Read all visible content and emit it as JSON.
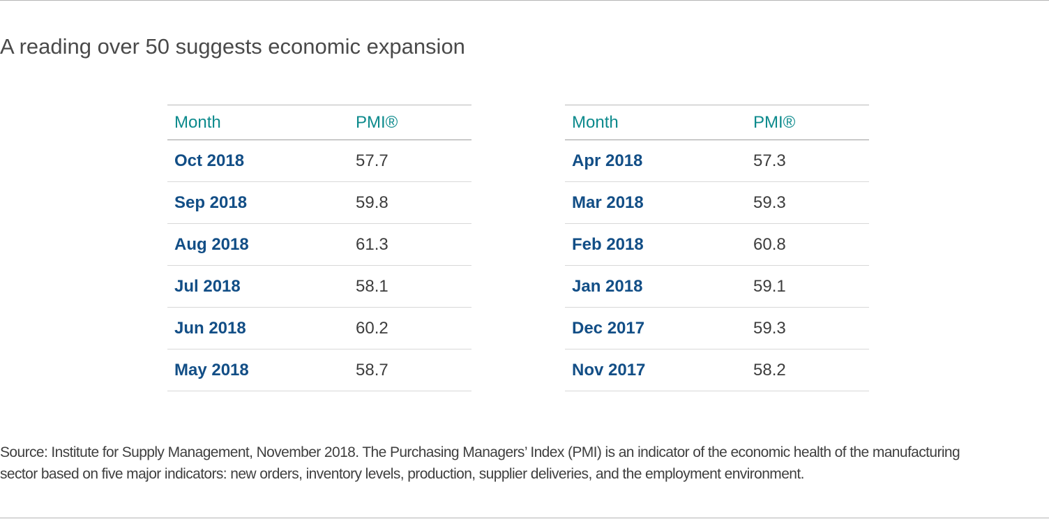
{
  "subtitle": "A reading over 50 suggests economic expansion",
  "chart_data": {
    "type": "table",
    "columns": [
      "Month",
      "PMI®"
    ],
    "tables": [
      {
        "rows": [
          {
            "month": "Oct 2018",
            "pmi": "57.7"
          },
          {
            "month": "Sep 2018",
            "pmi": "59.8"
          },
          {
            "month": "Aug 2018",
            "pmi": "61.3"
          },
          {
            "month": "Jul 2018",
            "pmi": "58.1"
          },
          {
            "month": "Jun 2018",
            "pmi": "60.2"
          },
          {
            "month": "May 2018",
            "pmi": "58.7"
          }
        ]
      },
      {
        "rows": [
          {
            "month": "Apr 2018",
            "pmi": "57.3"
          },
          {
            "month": "Mar 2018",
            "pmi": "59.3"
          },
          {
            "month": "Feb 2018",
            "pmi": "60.8"
          },
          {
            "month": "Jan 2018",
            "pmi": "59.1"
          },
          {
            "month": "Dec 2017",
            "pmi": "59.3"
          },
          {
            "month": "Nov 2017",
            "pmi": "58.2"
          }
        ]
      }
    ]
  },
  "source": {
    "line1": "Source: Institute for Supply Management, November 2018. The Purchasing Managers’ Index (PMI) is an indicator of the economic health of the manufacturing",
    "line2": "sector based on five major indicators: new orders, inventory levels, production, supplier deliveries, and the employment environment."
  },
  "colors": {
    "header_text": "#0c8a8c",
    "month_text": "#124e86",
    "value_text": "#3d3d3d",
    "rule": "#b5b5b5"
  }
}
